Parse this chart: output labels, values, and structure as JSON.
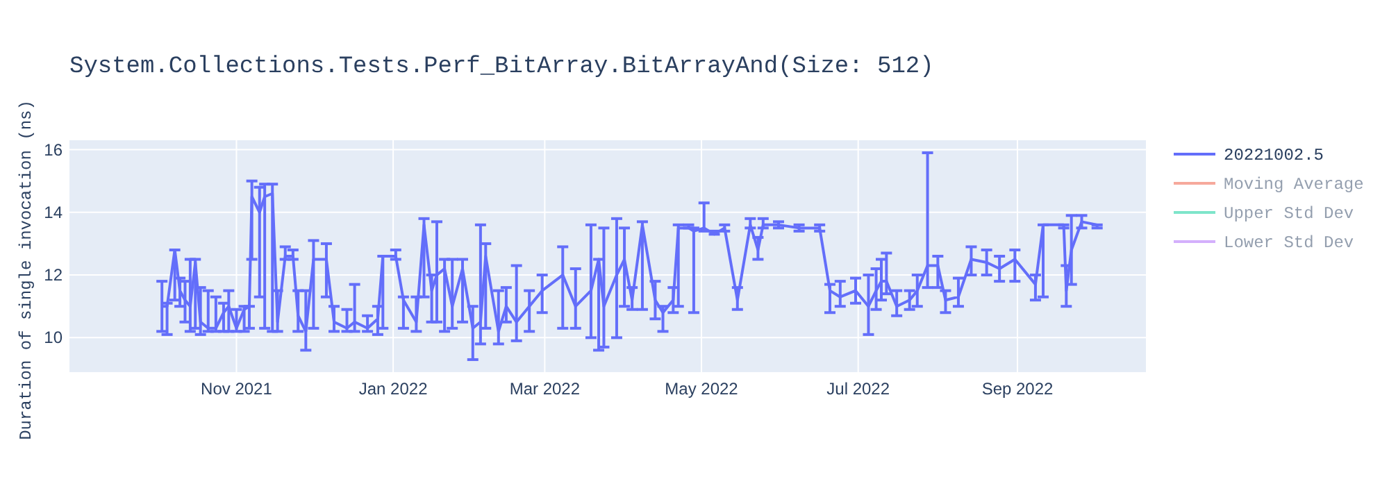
{
  "chart_data": {
    "type": "line",
    "title": "System.Collections.Tests.Perf_BitArray.BitArrayAnd(Size: 512)",
    "ylabel": "Duration of single invocation (ns)",
    "x": [
      "2021-10-03",
      "2021-10-05",
      "2021-10-08",
      "2021-10-10",
      "2021-10-12",
      "2021-10-14",
      "2021-10-16",
      "2021-10-18",
      "2021-10-21",
      "2021-10-24",
      "2021-10-27",
      "2021-10-29",
      "2021-11-01",
      "2021-11-04",
      "2021-11-06",
      "2021-11-07",
      "2021-11-10",
      "2021-11-12",
      "2021-11-15",
      "2021-11-17",
      "2021-11-20",
      "2021-11-23",
      "2021-11-25",
      "2021-11-28",
      "2021-12-01",
      "2021-12-06",
      "2021-12-09",
      "2021-12-14",
      "2021-12-17",
      "2021-12-22",
      "2021-12-26",
      "2021-12-28",
      "2022-01-02",
      "2022-01-05",
      "2022-01-10",
      "2022-01-13",
      "2022-01-16",
      "2022-01-18",
      "2022-01-21",
      "2022-01-24",
      "2022-01-28",
      "2022-02-01",
      "2022-02-04",
      "2022-02-06",
      "2022-02-11",
      "2022-02-14",
      "2022-02-18",
      "2022-02-23",
      "2022-02-28",
      "2022-03-08",
      "2022-03-13",
      "2022-03-19",
      "2022-03-22",
      "2022-03-24",
      "2022-03-29",
      "2022-04-01",
      "2022-04-04",
      "2022-04-08",
      "2022-04-13",
      "2022-04-16",
      "2022-04-20",
      "2022-04-22",
      "2022-04-26",
      "2022-04-28",
      "2022-05-02",
      "2022-05-06",
      "2022-05-10",
      "2022-05-15",
      "2022-05-20",
      "2022-05-23",
      "2022-05-25",
      "2022-05-31",
      "2022-06-08",
      "2022-06-16",
      "2022-06-20",
      "2022-06-24",
      "2022-06-30",
      "2022-07-05",
      "2022-07-08",
      "2022-07-10",
      "2022-07-12",
      "2022-07-16",
      "2022-07-21",
      "2022-07-24",
      "2022-07-28",
      "2022-08-01",
      "2022-08-04",
      "2022-08-09",
      "2022-08-14",
      "2022-08-20",
      "2022-08-25",
      "2022-08-31",
      "2022-09-08",
      "2022-09-11",
      "2022-09-19",
      "2022-09-20",
      "2022-09-22",
      "2022-09-26",
      "2022-10-02"
    ],
    "series": [
      {
        "name": "20221002.5",
        "color": "#636efa",
        "values": [
          11.0,
          11.0,
          12.8,
          11.5,
          11.2,
          11.0,
          12.4,
          10.5,
          10.3,
          10.3,
          10.8,
          11.0,
          10.3,
          10.9,
          11.0,
          14.5,
          14.0,
          14.5,
          14.6,
          10.5,
          12.6,
          12.6,
          10.7,
          10.2,
          12.5,
          12.5,
          10.5,
          10.3,
          10.5,
          10.3,
          10.6,
          12.6,
          12.6,
          11.2,
          10.5,
          13.6,
          11.5,
          12.0,
          12.2,
          11.0,
          12.2,
          10.3,
          10.5,
          12.6,
          10.2,
          11.0,
          10.5,
          11.0,
          11.5,
          12.0,
          11.0,
          11.5,
          12.5,
          11.0,
          12.0,
          12.5,
          11.2,
          13.6,
          11.2,
          10.8,
          11.2,
          13.5,
          13.5,
          13.4,
          13.5,
          13.3,
          13.5,
          11.2,
          13.6,
          12.8,
          13.6,
          13.6,
          13.5,
          13.5,
          11.5,
          11.3,
          11.5,
          11.0,
          11.5,
          11.8,
          11.8,
          11.0,
          11.2,
          11.5,
          12.3,
          12.3,
          11.2,
          11.3,
          12.5,
          12.4,
          12.2,
          12.5,
          11.7,
          13.6,
          13.6,
          11.5,
          12.8,
          13.7,
          13.6
        ],
        "errors": [
          [
            10.2,
            11.8
          ],
          [
            10.1,
            11.1
          ],
          [
            11.2,
            12.8
          ],
          [
            11.0,
            11.9
          ],
          [
            10.5,
            11.8
          ],
          [
            10.2,
            12.5
          ],
          [
            10.3,
            12.5
          ],
          [
            10.1,
            11.6
          ],
          [
            10.2,
            11.5
          ],
          [
            10.2,
            11.3
          ],
          [
            10.2,
            11.1
          ],
          [
            10.2,
            11.5
          ],
          [
            10.2,
            10.9
          ],
          [
            10.2,
            11.0
          ],
          [
            10.3,
            11.0
          ],
          [
            12.5,
            15.0
          ],
          [
            11.3,
            14.8
          ],
          [
            10.3,
            14.9
          ],
          [
            10.2,
            14.9
          ],
          [
            10.2,
            11.5
          ],
          [
            12.5,
            12.9
          ],
          [
            12.5,
            12.8
          ],
          [
            10.2,
            11.5
          ],
          [
            9.6,
            11.5
          ],
          [
            10.3,
            13.1
          ],
          [
            11.3,
            13.0
          ],
          [
            10.2,
            11.0
          ],
          [
            10.2,
            10.9
          ],
          [
            10.2,
            11.7
          ],
          [
            10.2,
            10.7
          ],
          [
            10.1,
            11.0
          ],
          [
            10.3,
            12.6
          ],
          [
            12.5,
            12.8
          ],
          [
            10.3,
            11.3
          ],
          [
            10.2,
            11.3
          ],
          [
            11.3,
            13.8
          ],
          [
            10.5,
            12.0
          ],
          [
            10.5,
            13.7
          ],
          [
            10.2,
            12.5
          ],
          [
            10.3,
            12.5
          ],
          [
            10.5,
            12.5
          ],
          [
            9.3,
            11.0
          ],
          [
            9.8,
            13.6
          ],
          [
            10.3,
            13.0
          ],
          [
            9.8,
            11.5
          ],
          [
            10.5,
            11.6
          ],
          [
            9.9,
            12.3
          ],
          [
            10.2,
            11.5
          ],
          [
            10.8,
            12.0
          ],
          [
            10.3,
            12.9
          ],
          [
            10.3,
            12.2
          ],
          [
            10.0,
            13.6
          ],
          [
            9.6,
            12.5
          ],
          [
            9.7,
            13.5
          ],
          [
            10.0,
            13.8
          ],
          [
            11.0,
            13.5
          ],
          [
            10.9,
            11.6
          ],
          [
            10.9,
            13.7
          ],
          [
            10.6,
            11.8
          ],
          [
            10.2,
            11.0
          ],
          [
            10.8,
            11.6
          ],
          [
            11.0,
            13.6
          ],
          [
            13.5,
            13.6
          ],
          [
            10.8,
            13.5
          ],
          [
            13.4,
            14.3
          ],
          [
            13.3,
            13.4
          ],
          [
            13.4,
            13.6
          ],
          [
            10.9,
            11.6
          ],
          [
            13.5,
            13.8
          ],
          [
            12.5,
            13.2
          ],
          [
            13.5,
            13.8
          ],
          [
            13.5,
            13.7
          ],
          [
            13.4,
            13.6
          ],
          [
            13.4,
            13.6
          ],
          [
            10.8,
            11.7
          ],
          [
            11.0,
            11.8
          ],
          [
            11.1,
            11.9
          ],
          [
            10.1,
            12.0
          ],
          [
            10.9,
            12.2
          ],
          [
            11.2,
            12.5
          ],
          [
            11.4,
            12.7
          ],
          [
            10.7,
            11.5
          ],
          [
            10.9,
            11.5
          ],
          [
            11.0,
            12.0
          ],
          [
            11.6,
            15.9
          ],
          [
            11.6,
            12.6
          ],
          [
            10.8,
            11.5
          ],
          [
            11.0,
            11.9
          ],
          [
            12.0,
            12.9
          ],
          [
            12.0,
            12.8
          ],
          [
            11.8,
            12.6
          ],
          [
            11.8,
            12.8
          ],
          [
            11.2,
            12.0
          ],
          [
            11.3,
            13.6
          ],
          [
            13.5,
            13.6
          ],
          [
            11.0,
            12.3
          ],
          [
            11.7,
            13.9
          ],
          [
            13.5,
            13.9
          ],
          [
            13.5,
            13.6
          ]
        ]
      },
      {
        "name": "Moving Average",
        "color": "#ef553b",
        "values": [
          null,
          null,
          null,
          null,
          null,
          null,
          null,
          null,
          null,
          null,
          null,
          null,
          null,
          null,
          null,
          null,
          null,
          null,
          null,
          null,
          null,
          null,
          null,
          null,
          null,
          null,
          null,
          null,
          null,
          null,
          null,
          null,
          null,
          null,
          null,
          null,
          null,
          null,
          null,
          null,
          null,
          null,
          null,
          null,
          null,
          null,
          null,
          null,
          null,
          null,
          null,
          null,
          null,
          null,
          null,
          null,
          null,
          null,
          null,
          null,
          null,
          null,
          null,
          null,
          null,
          null,
          null,
          null,
          null,
          null,
          null,
          null,
          null,
          null,
          null,
          null,
          null,
          null,
          null,
          null,
          null,
          null,
          null,
          null,
          null,
          null,
          null,
          null,
          null,
          null,
          null,
          null,
          null,
          null,
          null,
          null,
          null,
          null,
          null
        ]
      },
      {
        "name": "Upper Std Dev",
        "color": "#00cc96",
        "values": [
          null,
          null,
          null,
          null,
          null,
          null,
          null,
          null,
          null,
          null,
          null,
          null,
          null,
          null,
          null,
          null,
          null,
          null,
          null,
          null,
          null,
          null,
          null,
          null,
          null,
          null,
          null,
          null,
          null,
          null,
          null,
          null,
          null,
          null,
          null,
          null,
          null,
          null,
          null,
          null,
          null,
          null,
          null,
          null,
          null,
          null,
          null,
          null,
          null,
          null,
          null,
          null,
          null,
          null,
          null,
          null,
          null,
          null,
          null,
          null,
          null,
          null,
          null,
          null,
          null,
          null,
          null,
          null,
          null,
          null,
          null,
          null,
          null,
          null,
          null,
          null,
          null,
          null,
          null,
          null,
          null,
          null,
          null,
          null,
          null,
          null,
          null,
          null,
          null,
          null,
          null,
          null,
          null,
          null,
          null,
          null,
          null,
          null,
          null
        ]
      },
      {
        "name": "Lower Std Dev",
        "color": "#ab63fa",
        "values": [
          null,
          null,
          null,
          null,
          null,
          null,
          null,
          null,
          null,
          null,
          null,
          null,
          null,
          null,
          null,
          null,
          null,
          null,
          null,
          null,
          null,
          null,
          null,
          null,
          null,
          null,
          null,
          null,
          null,
          null,
          null,
          null,
          null,
          null,
          null,
          null,
          null,
          null,
          null,
          null,
          null,
          null,
          null,
          null,
          null,
          null,
          null,
          null,
          null,
          null,
          null,
          null,
          null,
          null,
          null,
          null,
          null,
          null,
          null,
          null,
          null,
          null,
          null,
          null,
          null,
          null,
          null,
          null,
          null,
          null,
          null,
          null,
          null,
          null,
          null,
          null,
          null,
          null,
          null,
          null,
          null,
          null,
          null,
          null,
          null,
          null,
          null,
          null,
          null,
          null,
          null,
          null,
          null,
          null,
          null,
          null,
          null,
          null,
          null
        ]
      }
    ],
    "xlim": [
      "2021-08-28",
      "2022-10-21"
    ],
    "xticks": [
      {
        "value": "2021-11-01",
        "label": "Nov 2021"
      },
      {
        "value": "2022-01-01",
        "label": "Jan 2022"
      },
      {
        "value": "2022-03-01",
        "label": "Mar 2022"
      },
      {
        "value": "2022-05-01",
        "label": "May 2022"
      },
      {
        "value": "2022-07-01",
        "label": "Jul 2022"
      },
      {
        "value": "2022-09-01",
        "label": "Sep 2022"
      }
    ],
    "ylim": [
      8.9,
      16.3
    ],
    "yticks": [
      10,
      12,
      14,
      16
    ],
    "grid": true,
    "legend": "right",
    "marker": "none",
    "line_style": "solid"
  }
}
